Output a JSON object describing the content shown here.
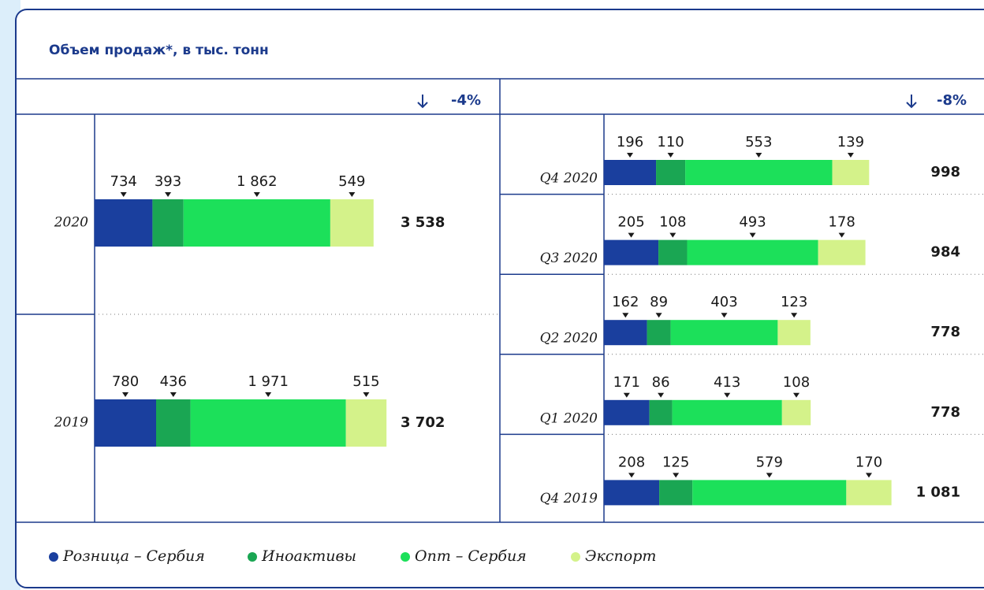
{
  "title": "Объем продаж*, в тыс. тонн",
  "chart_data": [
    {
      "type": "bar",
      "orientation": "horizontal",
      "stacked": true,
      "change": "-4%",
      "categories": [
        "2020",
        "2019"
      ],
      "series": [
        {
          "name": "Розница – Сербия",
          "color": "#1a3f9e",
          "values": [
            734,
            780
          ]
        },
        {
          "name": "Иноактивы",
          "color": "#1aa653",
          "values": [
            393,
            436
          ],
          "value_labels": [
            "393",
            "436"
          ]
        },
        {
          "name": "Опт – Сербия",
          "color": "#1ce05a",
          "values": [
            1862,
            1971
          ],
          "value_labels": [
            "1 862",
            "1 971"
          ]
        },
        {
          "name": "Экспорт",
          "color": "#d4f28a",
          "values": [
            549,
            515
          ]
        }
      ],
      "totals": [
        3538,
        3702
      ],
      "total_labels": [
        "3 538",
        "3 702"
      ]
    },
    {
      "type": "bar",
      "orientation": "horizontal",
      "stacked": true,
      "change": "-8%",
      "categories": [
        "Q4 2020",
        "Q3 2020",
        "Q2 2020",
        "Q1 2020",
        "Q4 2019"
      ],
      "series": [
        {
          "color": "#1a3f9e",
          "values": [
            196,
            205,
            162,
            171,
            208
          ]
        },
        {
          "color": "#1aa653",
          "values": [
            110,
            108,
            89,
            86,
            125
          ]
        },
        {
          "color": "#1ce05a",
          "values": [
            553,
            493,
            403,
            413,
            579
          ]
        },
        {
          "color": "#d4f28a",
          "values": [
            139,
            178,
            123,
            108,
            170
          ]
        }
      ],
      "totals": [
        998,
        984,
        778,
        778,
        1081
      ],
      "total_labels": [
        "998",
        "984",
        "778",
        "778",
        "1 081"
      ]
    }
  ]
}
